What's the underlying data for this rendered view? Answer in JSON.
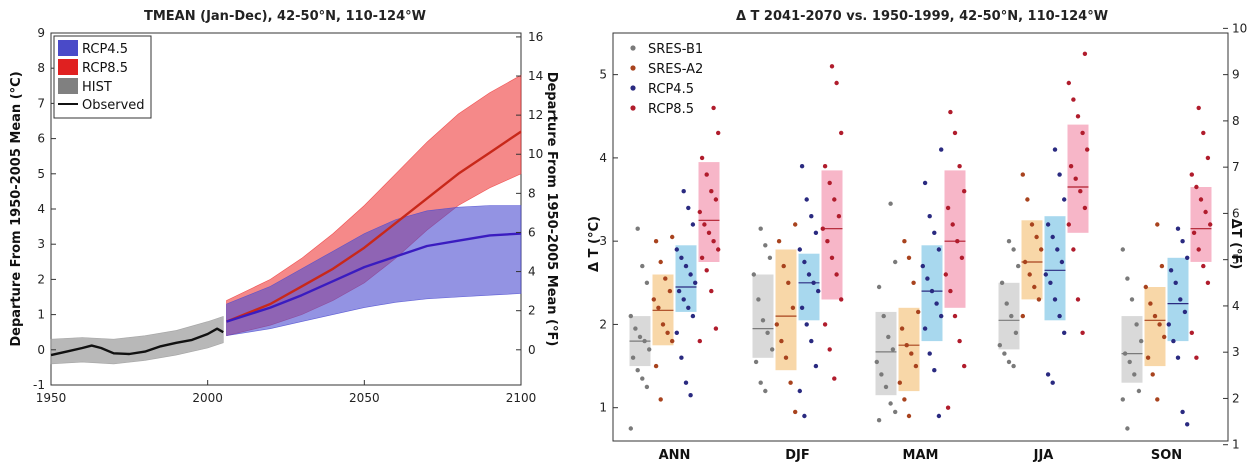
{
  "chart_data": [
    {
      "type": "line",
      "title": "TMEAN (Jan-Dec), 42-50°N, 110-124°W",
      "xlabel": "",
      "ylabel_left": "Departure From 1950-2005 Mean (°C)",
      "ylabel_right": "Departure From 1950-2005 Mean (°F)",
      "xlim": [
        1950,
        2100
      ],
      "ylim": [
        -1,
        9
      ],
      "ylim_right_f": [
        -1.8,
        16.2
      ],
      "x_ticks": [
        "1950",
        "2000",
        "2050",
        "2100"
      ],
      "y_ticks": [
        "-1",
        "0",
        "1",
        "2",
        "3",
        "4",
        "5",
        "6",
        "7",
        "8",
        "9"
      ],
      "y_ticks_right": [
        "0",
        "2",
        "4",
        "6",
        "8",
        "10",
        "12",
        "14",
        "16"
      ],
      "legend": {
        "placement": "top-left",
        "items": [
          {
            "label": "RCP4.5",
            "color": "#4a4ac8",
            "kind": "patch"
          },
          {
            "label": "RCP8.5",
            "color": "#e02020",
            "kind": "patch"
          },
          {
            "label": "HIST",
            "color": "#808080",
            "kind": "patch"
          },
          {
            "label": "Observed",
            "color": "#111111",
            "kind": "line"
          }
        ]
      },
      "bands": [
        {
          "name": "HIST",
          "color": "#9a9a9a",
          "x": [
            1950,
            1960,
            1970,
            1980,
            1990,
            2000,
            2005
          ],
          "low": [
            -0.4,
            -0.35,
            -0.4,
            -0.3,
            -0.15,
            0.05,
            0.2
          ],
          "high": [
            0.3,
            0.35,
            0.3,
            0.4,
            0.55,
            0.8,
            0.95
          ]
        },
        {
          "name": "RCP8.5",
          "color": "#ee3a3a",
          "x": [
            2006,
            2020,
            2030,
            2040,
            2050,
            2060,
            2070,
            2080,
            2090,
            2100
          ],
          "low": [
            0.4,
            0.7,
            1.0,
            1.4,
            1.9,
            2.6,
            3.4,
            4.1,
            4.6,
            5.0
          ],
          "high": [
            1.4,
            2.0,
            2.6,
            3.3,
            4.1,
            5.0,
            5.9,
            6.7,
            7.3,
            7.8
          ]
        },
        {
          "name": "RCP4.5",
          "color": "#4b4bd0",
          "x": [
            2006,
            2020,
            2030,
            2040,
            2050,
            2060,
            2070,
            2080,
            2090,
            2100
          ],
          "low": [
            0.4,
            0.6,
            0.8,
            1.0,
            1.2,
            1.35,
            1.45,
            1.5,
            1.55,
            1.6
          ],
          "high": [
            1.3,
            1.8,
            2.3,
            2.8,
            3.3,
            3.7,
            3.95,
            4.05,
            4.1,
            4.1
          ]
        }
      ],
      "series": [
        {
          "name": "Observed",
          "color": "#111111",
          "x": [
            1950,
            1955,
            1960,
            1963,
            1966,
            1970,
            1975,
            1980,
            1985,
            1990,
            1995,
            2000,
            2003,
            2005
          ],
          "y": [
            -0.15,
            -0.05,
            0.05,
            0.12,
            0.05,
            -0.1,
            -0.12,
            -0.05,
            0.1,
            0.2,
            0.28,
            0.45,
            0.6,
            0.5
          ]
        },
        {
          "name": "RCP8.5",
          "color": "#c8281a",
          "x": [
            2006,
            2020,
            2030,
            2040,
            2050,
            2060,
            2070,
            2080,
            2090,
            2100
          ],
          "y": [
            0.8,
            1.3,
            1.8,
            2.3,
            2.9,
            3.6,
            4.3,
            5.0,
            5.6,
            6.2
          ]
        },
        {
          "name": "RCP4.5",
          "color": "#3a1cc0",
          "x": [
            2006,
            2020,
            2030,
            2040,
            2050,
            2060,
            2070,
            2080,
            2090,
            2100
          ],
          "y": [
            0.8,
            1.2,
            1.55,
            1.95,
            2.35,
            2.65,
            2.95,
            3.1,
            3.25,
            3.3
          ]
        }
      ]
    },
    {
      "type": "scatter",
      "title": "Δ T 2041-2070 vs. 1950-1999, 42-50°N, 110-124°W",
      "xlabel": "",
      "ylabel_left": "Δ T (°C)",
      "ylabel_right": "ΔT (°F)",
      "categories": [
        "ANN",
        "DJF",
        "MAM",
        "JJA",
        "SON"
      ],
      "ylim": [
        0.6,
        5.5
      ],
      "ylim_right_f": [
        1.08,
        9.9
      ],
      "y_ticks": [
        "1",
        "2",
        "3",
        "4",
        "5"
      ],
      "y_ticks_right": [
        "1",
        "2",
        "3",
        "4",
        "5",
        "6",
        "7",
        "8",
        "9",
        "10"
      ],
      "legend": {
        "placement": "top-left",
        "items": [
          {
            "label": "SRES-B1",
            "color": "#7a7a7a"
          },
          {
            "label": "SRES-A2",
            "color": "#a8431e"
          },
          {
            "label": "RCP4.5",
            "color": "#2a2a80"
          },
          {
            "label": "RCP8.5",
            "color": "#b01c2c"
          }
        ]
      },
      "series": [
        {
          "name": "SRES-B1",
          "color": "#7a7a7a",
          "box_color": "#d9d9d9",
          "box_low": [
            1.5,
            1.6,
            1.15,
            1.7,
            1.3
          ],
          "box_high": [
            2.1,
            2.6,
            2.15,
            2.5,
            2.1
          ],
          "median": [
            1.8,
            1.95,
            1.67,
            2.05,
            1.65
          ],
          "points": [
            [
              0.75,
              1.25,
              1.35,
              1.45,
              1.6,
              1.7,
              1.8,
              1.85,
              1.95,
              2.1,
              2.5,
              2.7,
              3.15
            ],
            [
              1.2,
              1.3,
              1.55,
              1.7,
              1.9,
              2.05,
              2.3,
              2.6,
              2.8,
              2.95,
              3.15
            ],
            [
              0.85,
              0.95,
              1.05,
              1.25,
              1.4,
              1.55,
              1.7,
              1.85,
              2.1,
              2.45,
              2.75,
              3.45
            ],
            [
              1.5,
              1.55,
              1.65,
              1.75,
              1.9,
              2.1,
              2.25,
              2.5,
              2.7,
              2.9,
              3.0
            ],
            [
              0.75,
              1.1,
              1.2,
              1.4,
              1.55,
              1.65,
              1.8,
              2.0,
              2.3,
              2.55,
              2.9
            ]
          ]
        },
        {
          "name": "SRES-A2",
          "color": "#a8431e",
          "box_color": "#f8d7a8",
          "box_low": [
            1.75,
            1.45,
            1.2,
            2.3,
            1.5
          ],
          "box_high": [
            2.6,
            2.9,
            2.2,
            3.25,
            2.45
          ],
          "median": [
            2.17,
            2.1,
            1.75,
            2.75,
            2.05
          ],
          "points": [
            [
              1.1,
              1.5,
              1.8,
              1.9,
              2.0,
              2.2,
              2.3,
              2.4,
              2.55,
              2.75,
              3.0,
              3.05
            ],
            [
              0.95,
              1.3,
              1.6,
              1.8,
              2.0,
              2.2,
              2.5,
              2.7,
              3.0,
              3.2
            ],
            [
              0.9,
              1.1,
              1.3,
              1.5,
              1.65,
              1.75,
              1.95,
              2.15,
              2.5,
              2.8,
              3.0
            ],
            [
              2.1,
              2.3,
              2.45,
              2.6,
              2.75,
              2.9,
              3.05,
              3.2,
              3.5,
              3.8
            ],
            [
              1.1,
              1.4,
              1.6,
              1.85,
              2.0,
              2.1,
              2.25,
              2.45,
              2.7,
              3.2
            ]
          ]
        },
        {
          "name": "RCP4.5",
          "color": "#2a2a80",
          "box_color": "#a8d8ee",
          "box_low": [
            2.15,
            2.05,
            1.8,
            2.05,
            1.8
          ],
          "box_high": [
            2.95,
            2.85,
            2.95,
            3.3,
            2.8
          ],
          "median": [
            2.45,
            2.5,
            2.4,
            2.65,
            2.25
          ],
          "points": [
            [
              1.15,
              1.3,
              1.6,
              1.9,
              2.1,
              2.2,
              2.3,
              2.4,
              2.5,
              2.6,
              2.7,
              2.8,
              2.9,
              3.2,
              3.4,
              3.6
            ],
            [
              0.9,
              1.2,
              1.5,
              1.8,
              2.0,
              2.2,
              2.4,
              2.5,
              2.6,
              2.75,
              2.9,
              3.1,
              3.3,
              3.5,
              3.9
            ],
            [
              0.9,
              1.45,
              1.65,
              1.95,
              2.1,
              2.25,
              2.4,
              2.55,
              2.7,
              2.9,
              3.1,
              3.3,
              3.7,
              4.1
            ],
            [
              1.3,
              1.4,
              1.9,
              2.1,
              2.3,
              2.5,
              2.6,
              2.75,
              2.9,
              3.05,
              3.2,
              3.5,
              3.8,
              4.1
            ],
            [
              0.8,
              0.95,
              1.6,
              1.8,
              2.0,
              2.15,
              2.3,
              2.5,
              2.65,
              2.8,
              3.0,
              3.15
            ]
          ]
        },
        {
          "name": "RCP8.5",
          "color": "#b01c2c",
          "box_color": "#f7b6c8",
          "box_low": [
            2.75,
            2.3,
            2.2,
            3.1,
            2.75
          ],
          "box_high": [
            3.95,
            3.85,
            3.85,
            4.4,
            3.65
          ],
          "median": [
            3.25,
            3.15,
            3.0,
            3.65,
            3.15
          ],
          "points": [
            [
              1.8,
              1.95,
              2.4,
              2.65,
              2.8,
              2.9,
              3.0,
              3.1,
              3.2,
              3.35,
              3.5,
              3.6,
              3.8,
              4.0,
              4.3,
              4.6
            ],
            [
              1.35,
              1.7,
              2.0,
              2.3,
              2.6,
              2.8,
              3.0,
              3.15,
              3.3,
              3.5,
              3.7,
              3.9,
              4.3,
              4.9,
              5.1
            ],
            [
              1.0,
              1.5,
              1.8,
              2.1,
              2.4,
              2.6,
              2.8,
              3.0,
              3.2,
              3.4,
              3.6,
              3.9,
              4.3,
              4.55
            ],
            [
              1.9,
              2.3,
              2.9,
              3.2,
              3.4,
              3.6,
              3.75,
              3.9,
              4.1,
              4.3,
              4.5,
              4.7,
              4.9,
              5.25
            ],
            [
              1.6,
              1.9,
              2.5,
              2.7,
              2.9,
              3.1,
              3.2,
              3.35,
              3.5,
              3.65,
              3.8,
              4.0,
              4.3,
              4.6
            ]
          ]
        }
      ]
    }
  ]
}
